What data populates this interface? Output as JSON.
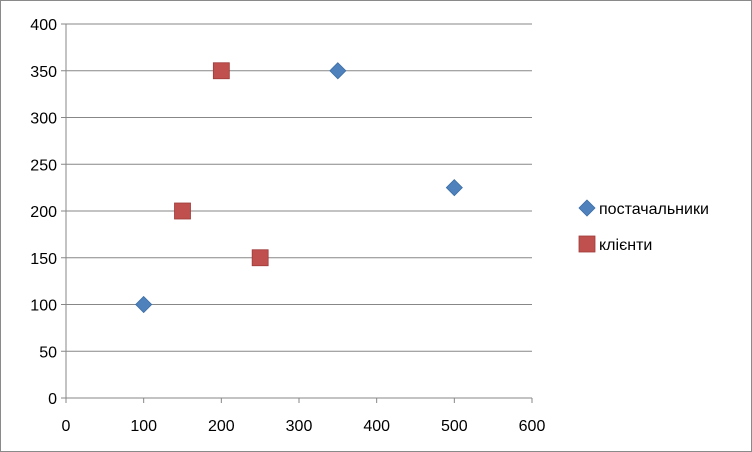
{
  "chart_data": {
    "type": "scatter",
    "title": "",
    "xlabel": "",
    "ylabel": "",
    "xlim": [
      0,
      600
    ],
    "ylim": [
      0,
      400
    ],
    "x_ticks": [
      0,
      100,
      200,
      300,
      400,
      500,
      600
    ],
    "y_ticks": [
      0,
      50,
      100,
      150,
      200,
      250,
      300,
      350,
      400
    ],
    "grid": "horizontal",
    "legend_position": "right",
    "series": [
      {
        "name": "постачальники",
        "marker": "diamond",
        "color": "#4F81BD",
        "points": [
          {
            "x": 100,
            "y": 100
          },
          {
            "x": 350,
            "y": 350
          },
          {
            "x": 500,
            "y": 225
          }
        ]
      },
      {
        "name": "клієнти",
        "marker": "square",
        "color": "#C0504D",
        "points": [
          {
            "x": 150,
            "y": 200
          },
          {
            "x": 200,
            "y": 350
          },
          {
            "x": 250,
            "y": 150
          }
        ]
      }
    ]
  }
}
